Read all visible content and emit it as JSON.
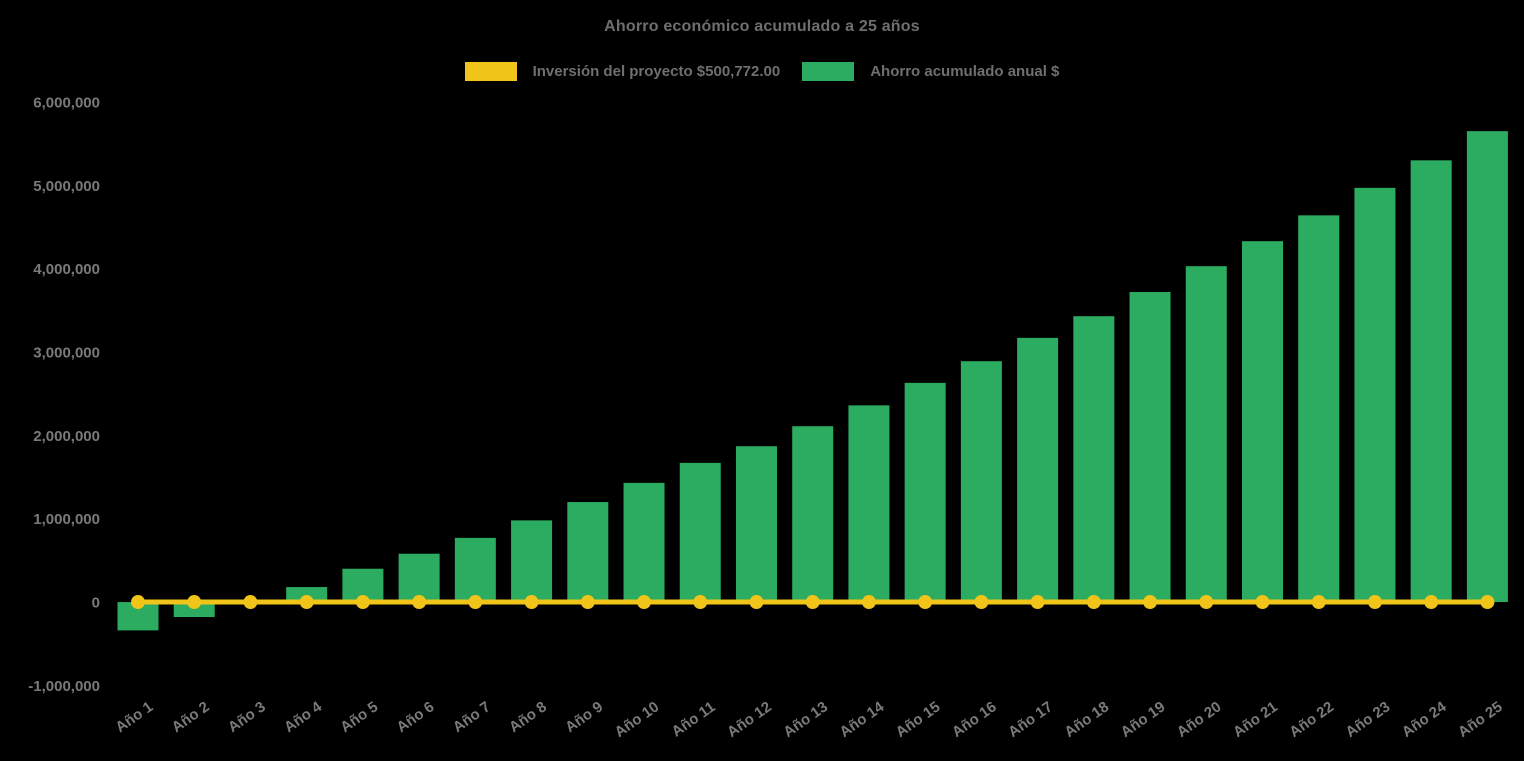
{
  "title": "Ahorro económico acumulado a 25 años",
  "legend": [
    {
      "label": "Inversión del proyecto $500,772.00",
      "color": "#F0C419",
      "series": "investment-line"
    },
    {
      "label": "Ahorro acumulado anual $",
      "color": "#2BAC60",
      "series": "savings-bars"
    }
  ],
  "colors": {
    "background": "#000000",
    "bar_green": "#2BAC60",
    "line_yellow": "#F0C419",
    "title_text": "#6F6F6F",
    "axis_text": "#7A7A7A"
  },
  "chart_data": {
    "type": "bar",
    "title": "Ahorro económico acumulado a 25 años",
    "categories": [
      "Año 1",
      "Año 2",
      "Año 3",
      "Año 4",
      "Año 5",
      "Año 6",
      "Año 7",
      "Año 8",
      "Año 9",
      "Año 10",
      "Año 11",
      "Año 12",
      "Año 13",
      "Año 14",
      "Año 15",
      "Año 16",
      "Año 17",
      "Año 18",
      "Año 19",
      "Año 20",
      "Año 21",
      "Año 22",
      "Año 23",
      "Año 24",
      "Año 25"
    ],
    "series": [
      {
        "name": "Ahorro acumulado anual $",
        "type": "bar",
        "color": "#2BAC60",
        "values": [
          -340000,
          -180000,
          0,
          180000,
          400000,
          580000,
          770000,
          980000,
          1200000,
          1430000,
          1670000,
          1870000,
          2110000,
          2360000,
          2630000,
          2890000,
          3170000,
          3430000,
          3720000,
          4030000,
          4330000,
          4640000,
          4970000,
          5300000,
          5650000
        ]
      },
      {
        "name": "Inversión del proyecto $500,772.00",
        "type": "line",
        "color": "#F0C419",
        "constant_value": 0,
        "markers": true,
        "investment_amount_label": "$500,772.00"
      }
    ],
    "xlabel": "",
    "ylabel": "",
    "ylim": [
      -1000000,
      6000000
    ],
    "y_tick_step": 1000000,
    "y_tick_labels": [
      "6,000,000",
      "5,000,000",
      "4,000,000",
      "3,000,000",
      "2,000,000",
      "1,000,000",
      "0",
      "-1,000,000"
    ],
    "grid": false,
    "legend_position": "top",
    "background": "#000000"
  }
}
